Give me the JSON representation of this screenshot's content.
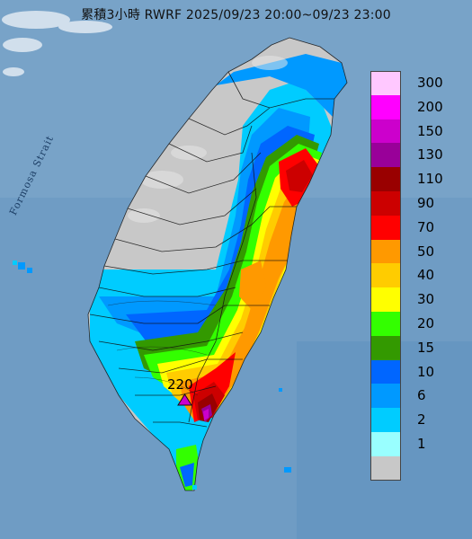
{
  "title": "累積3小時 RWRF 2025/09/23 20:00~09/23 23:00",
  "map_labels": {
    "strait": "Formosa Strait",
    "peak_value": "220"
  },
  "peak_marker_icon": "triangle-marker-icon",
  "legend": {
    "unit_hint": "mm",
    "bins": [
      {
        "label": "300",
        "color": "#ffc8ff"
      },
      {
        "label": "200",
        "color": "#ff00ff"
      },
      {
        "label": "150",
        "color": "#cc00cc"
      },
      {
        "label": "130",
        "color": "#990099"
      },
      {
        "label": "110",
        "color": "#990000"
      },
      {
        "label": "90",
        "color": "#cc0000"
      },
      {
        "label": "70",
        "color": "#ff0000"
      },
      {
        "label": "50",
        "color": "#ff9900"
      },
      {
        "label": "40",
        "color": "#ffcc00"
      },
      {
        "label": "30",
        "color": "#ffff00"
      },
      {
        "label": "20",
        "color": "#33ff00"
      },
      {
        "label": "15",
        "color": "#339900"
      },
      {
        "label": "10",
        "color": "#0066ff"
      },
      {
        "label": "6",
        "color": "#0099ff"
      },
      {
        "label": "2",
        "color": "#00ccff"
      },
      {
        "label": "1",
        "color": "#99ffff"
      },
      {
        "label": "",
        "color": "#c8c8c8"
      }
    ]
  }
}
